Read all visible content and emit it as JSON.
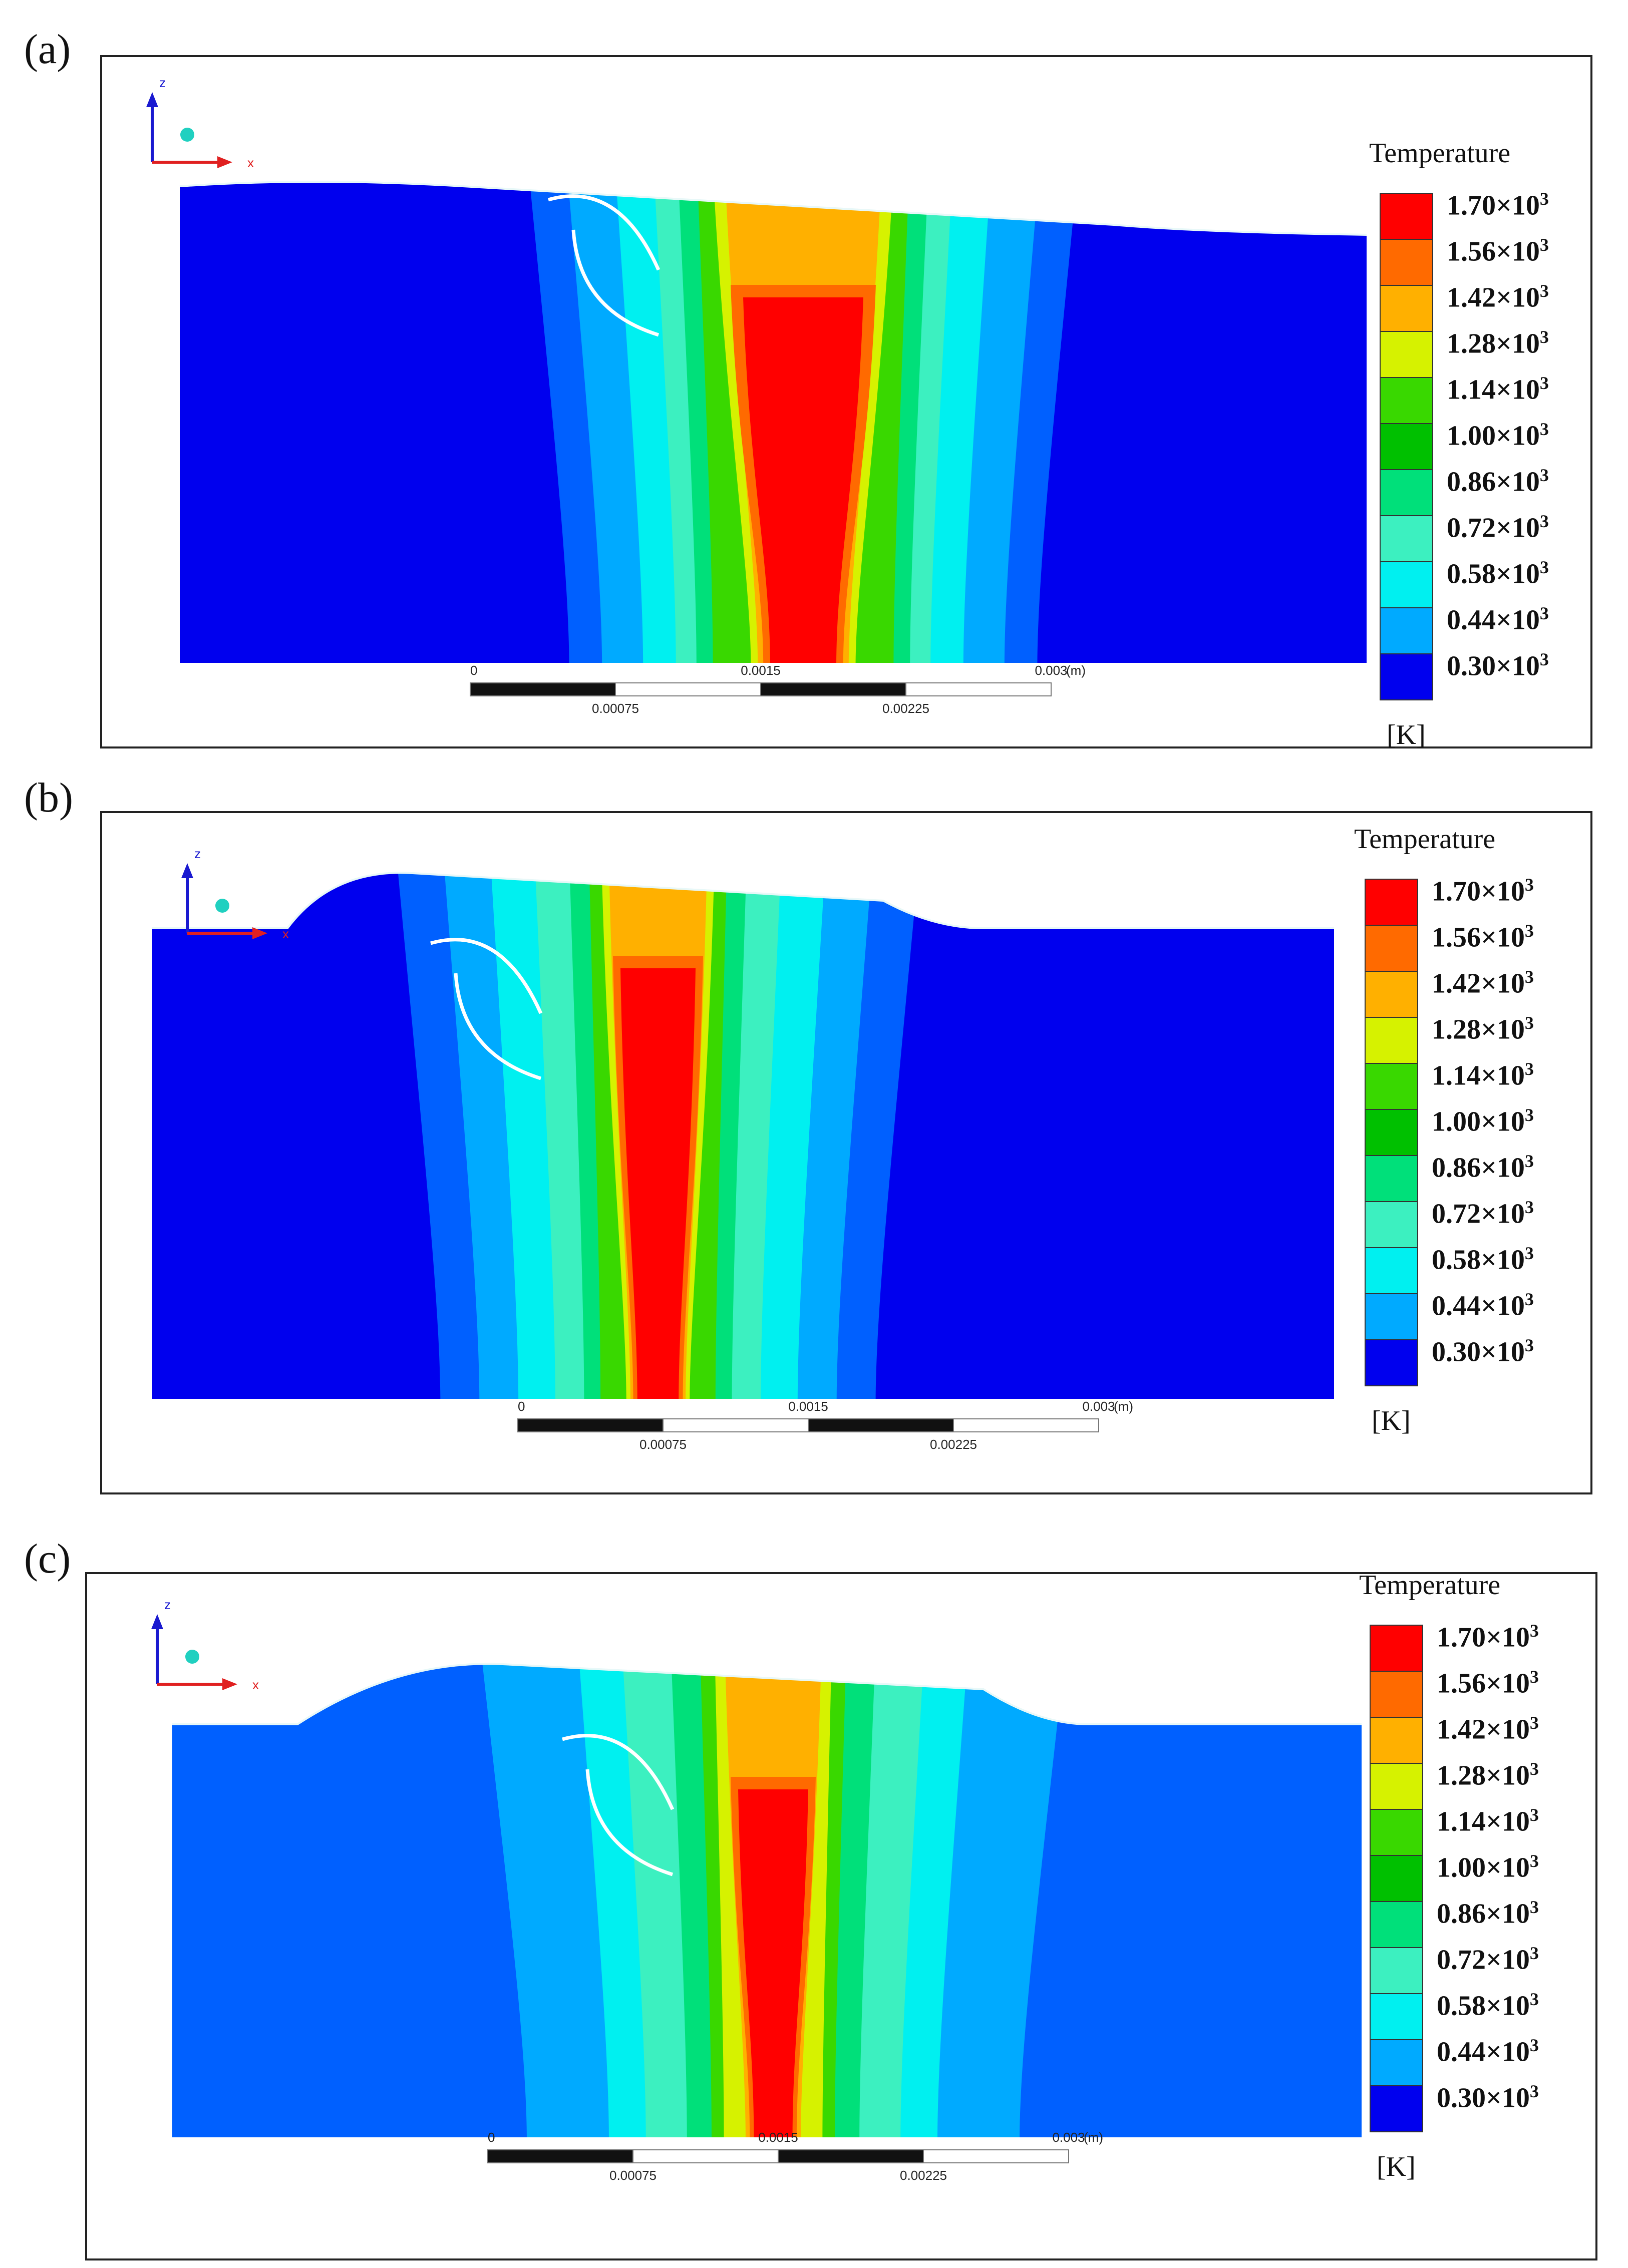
{
  "panels": [
    {
      "label": "(a)"
    },
    {
      "label": "(b)"
    },
    {
      "label": "(c)"
    }
  ],
  "legend": {
    "title": "Temperature",
    "unit": "[K]",
    "levels": [
      {
        "mantissa": "1.70",
        "color": "#ff0000"
      },
      {
        "mantissa": "1.56",
        "color": "#ff6a00"
      },
      {
        "mantissa": "1.42",
        "color": "#ffb000"
      },
      {
        "mantissa": "1.28",
        "color": "#d6f200"
      },
      {
        "mantissa": "1.14",
        "color": "#39d800"
      },
      {
        "mantissa": "1.00",
        "color": "#00c000"
      },
      {
        "mantissa": "0.86",
        "color": "#00e07a"
      },
      {
        "mantissa": "0.72",
        "color": "#3cf0c0"
      },
      {
        "mantissa": "0.58",
        "color": "#00f0f0"
      },
      {
        "mantissa": "0.44",
        "color": "#00aaff"
      },
      {
        "mantissa": "0.30",
        "color": "#0060ff"
      }
    ],
    "bottom_color": "#0000ee",
    "times": "×10",
    "exponent": "3"
  },
  "scale_bar": {
    "top_labels": [
      "0",
      "0.0015",
      "0.003"
    ],
    "unit": "(m)",
    "bottom_labels": [
      "0.00075",
      "0.00225"
    ]
  },
  "axes": {
    "z": "z",
    "x": "x"
  }
}
